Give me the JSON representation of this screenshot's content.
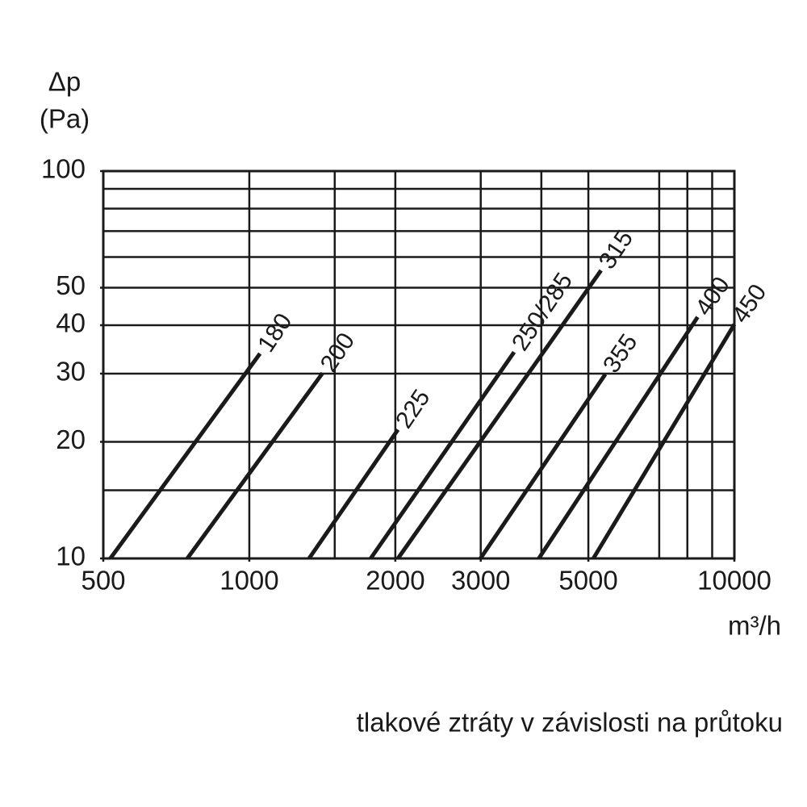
{
  "chart_data": {
    "type": "line",
    "xlog": true,
    "ylog": true,
    "color": "#1a1a1a",
    "ylabel": [
      "Δp",
      "(Pa)"
    ],
    "xlabel": "m³/h",
    "caption": "tlakové ztráty v závislosti na průtoku",
    "xlim": [
      500,
      10000
    ],
    "ylim": [
      10,
      100
    ],
    "xticks": [
      500,
      1000,
      2000,
      3000,
      5000,
      10000
    ],
    "yticks": [
      10,
      20,
      30,
      40,
      50,
      100
    ],
    "xgrid": [
      1000,
      1500,
      2000,
      3000,
      4000,
      5000,
      7000,
      8000,
      9000
    ],
    "ygrid": [
      15,
      20,
      30,
      40,
      50,
      60,
      70,
      80,
      90
    ],
    "grid": true,
    "series": [
      {
        "name": "180",
        "x": [
          517,
          1052
        ],
        "values": [
          10,
          33.8
        ]
      },
      {
        "name": "200",
        "x": [
          745,
          1416
        ],
        "values": [
          10,
          30.1
        ]
      },
      {
        "name": "225",
        "x": [
          1328,
          2025
        ],
        "values": [
          10,
          21.5
        ]
      },
      {
        "name": "250/285",
        "x": [
          1779,
          3515
        ],
        "values": [
          10,
          34.1
        ]
      },
      {
        "name": "315",
        "x": [
          2025,
          5310
        ],
        "values": [
          10,
          55.4
        ]
      },
      {
        "name": "355",
        "x": [
          2996,
          5420
        ],
        "values": [
          10,
          29.9
        ]
      },
      {
        "name": "400",
        "x": [
          3952,
          8400
        ],
        "values": [
          10,
          42.0
        ]
      },
      {
        "name": "450",
        "x": [
          5120,
          10000
        ],
        "values": [
          10,
          40.2
        ]
      }
    ]
  }
}
